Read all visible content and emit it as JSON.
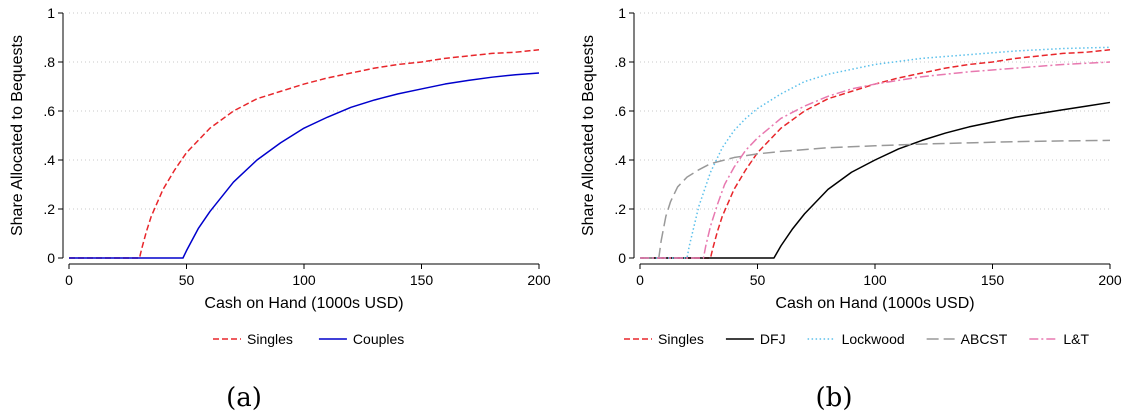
{
  "chart_data": [
    {
      "type": "line",
      "panel_label": "(a)",
      "xlabel": "Cash on Hand (1000s USD)",
      "ylabel": "Share Allocated to Bequests",
      "xlim": [
        0,
        200
      ],
      "ylim": [
        0,
        1
      ],
      "xticks": [
        0,
        50,
        100,
        150,
        200
      ],
      "xtick_labels": [
        "0",
        "50",
        "100",
        "150",
        "200"
      ],
      "yticks": [
        0,
        0.2,
        0.4,
        0.6,
        0.8,
        1
      ],
      "ytick_labels": [
        "0",
        ".2",
        ".4",
        ".6",
        ".8",
        "1"
      ],
      "grid": "horizontal dotted",
      "legend_position": "bottom",
      "series": [
        {
          "name": "Singles",
          "color": "#e8262b",
          "dash": "dashed",
          "x": [
            0,
            30,
            31,
            33,
            35,
            40,
            45,
            50,
            55,
            60,
            70,
            80,
            90,
            100,
            110,
            120,
            130,
            140,
            150,
            160,
            170,
            180,
            190,
            200
          ],
          "y": [
            0,
            0,
            0.04,
            0.11,
            0.17,
            0.28,
            0.36,
            0.43,
            0.48,
            0.53,
            0.6,
            0.65,
            0.68,
            0.71,
            0.735,
            0.755,
            0.775,
            0.79,
            0.8,
            0.815,
            0.825,
            0.835,
            0.84,
            0.85
          ]
        },
        {
          "name": "Couples",
          "color": "#0000cc",
          "dash": "solid",
          "x": [
            0,
            48.5,
            50,
            55,
            60,
            70,
            80,
            90,
            100,
            110,
            120,
            130,
            140,
            150,
            160,
            170,
            180,
            190,
            200
          ],
          "y": [
            0,
            0,
            0.03,
            0.12,
            0.19,
            0.31,
            0.4,
            0.47,
            0.53,
            0.575,
            0.615,
            0.645,
            0.67,
            0.69,
            0.71,
            0.725,
            0.738,
            0.748,
            0.755
          ]
        }
      ]
    },
    {
      "type": "line",
      "panel_label": "(b)",
      "xlabel": "Cash on Hand (1000s USD)",
      "ylabel": "Share Allocated to Bequests",
      "xlim": [
        0,
        200
      ],
      "ylim": [
        0,
        1
      ],
      "xticks": [
        0,
        50,
        100,
        150,
        200
      ],
      "xtick_labels": [
        "0",
        "50",
        "100",
        "150",
        "200"
      ],
      "yticks": [
        0,
        0.2,
        0.4,
        0.6,
        0.8,
        1
      ],
      "ytick_labels": [
        "0",
        ".2",
        ".4",
        ".6",
        ".8",
        "1"
      ],
      "grid": "horizontal dotted",
      "legend_position": "bottom",
      "series": [
        {
          "name": "Singles",
          "color": "#e8262b",
          "dash": "dashed",
          "x": [
            0,
            30,
            31,
            33,
            35,
            40,
            45,
            50,
            55,
            60,
            70,
            80,
            90,
            100,
            110,
            120,
            130,
            140,
            150,
            160,
            170,
            180,
            190,
            200
          ],
          "y": [
            0,
            0,
            0.04,
            0.11,
            0.17,
            0.28,
            0.36,
            0.43,
            0.48,
            0.53,
            0.6,
            0.65,
            0.68,
            0.71,
            0.735,
            0.755,
            0.775,
            0.79,
            0.8,
            0.815,
            0.825,
            0.835,
            0.84,
            0.85
          ]
        },
        {
          "name": "DFJ",
          "color": "#000000",
          "dash": "solid",
          "x": [
            0,
            57,
            60,
            65,
            70,
            80,
            90,
            100,
            110,
            120,
            130,
            140,
            150,
            160,
            170,
            180,
            190,
            200
          ],
          "y": [
            0,
            0,
            0.05,
            0.12,
            0.18,
            0.28,
            0.35,
            0.4,
            0.445,
            0.48,
            0.51,
            0.535,
            0.555,
            0.575,
            0.59,
            0.605,
            0.62,
            0.635
          ]
        },
        {
          "name": "Lockwood",
          "color": "#5bc0eb",
          "dash": "dotted",
          "x": [
            0,
            20,
            21,
            23,
            25,
            30,
            35,
            40,
            45,
            50,
            60,
            70,
            80,
            100,
            120,
            140,
            160,
            180,
            200
          ],
          "y": [
            0,
            0,
            0.05,
            0.13,
            0.21,
            0.35,
            0.45,
            0.52,
            0.57,
            0.61,
            0.67,
            0.72,
            0.75,
            0.79,
            0.815,
            0.83,
            0.845,
            0.855,
            0.86
          ]
        },
        {
          "name": "ABCST",
          "color": "#999999",
          "dash": "longdash",
          "x": [
            0,
            8,
            9,
            11,
            13,
            16,
            20,
            25,
            30,
            40,
            50,
            60,
            80,
            100,
            120,
            140,
            160,
            180,
            200
          ],
          "y": [
            0,
            0,
            0.07,
            0.17,
            0.23,
            0.29,
            0.33,
            0.36,
            0.385,
            0.41,
            0.425,
            0.435,
            0.45,
            0.458,
            0.465,
            0.47,
            0.475,
            0.478,
            0.48
          ]
        },
        {
          "name": "L&T",
          "color": "#e879b0",
          "dash": "dashdot",
          "x": [
            0,
            27,
            28,
            30,
            33,
            36,
            40,
            45,
            50,
            55,
            60,
            70,
            80,
            90,
            100,
            120,
            140,
            160,
            180,
            200
          ],
          "y": [
            0,
            0,
            0.05,
            0.13,
            0.22,
            0.3,
            0.37,
            0.44,
            0.49,
            0.53,
            0.57,
            0.62,
            0.66,
            0.69,
            0.71,
            0.74,
            0.76,
            0.775,
            0.79,
            0.8
          ]
        }
      ]
    }
  ]
}
